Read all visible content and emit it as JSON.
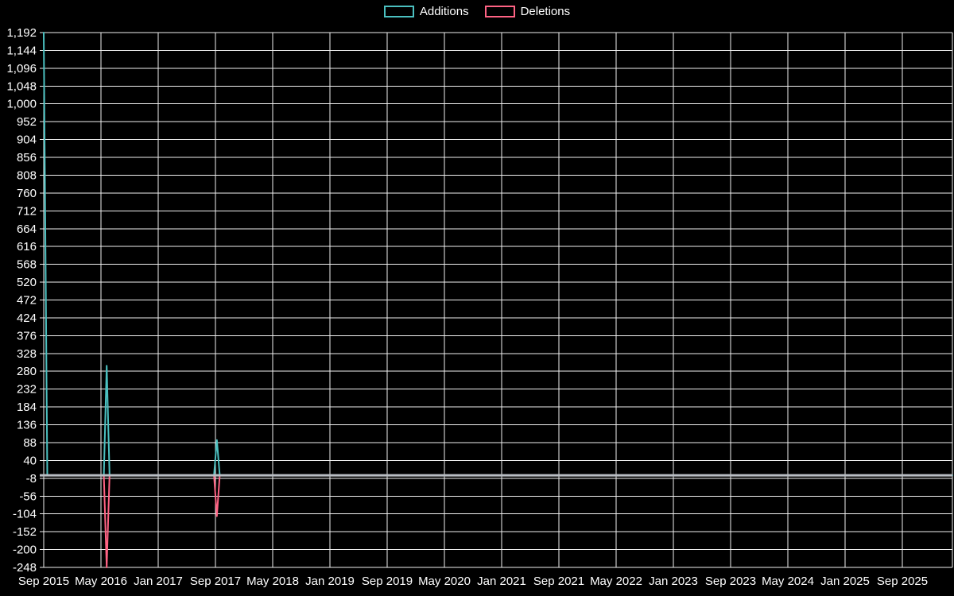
{
  "page": {
    "background": "#000000",
    "text_color": "#ffffff"
  },
  "chart_data": {
    "type": "line",
    "title": "",
    "legend_position": "top",
    "grid": true,
    "grid_color": "#f0f0f0",
    "zero_line_color": "#b9bdc3",
    "background": "#000000",
    "x_unit": "months since Sep 2015",
    "x_domain": [
      0,
      127
    ],
    "y_domain": [
      -248,
      1192
    ],
    "y_tick_step": 48,
    "y_ticks": [
      1192,
      1144,
      1096,
      1048,
      1000,
      952,
      904,
      856,
      808,
      760,
      712,
      664,
      616,
      568,
      520,
      472,
      424,
      376,
      328,
      280,
      232,
      184,
      136,
      88,
      40,
      -8,
      -56,
      -104,
      -152,
      -200,
      -248
    ],
    "x_ticks": [
      {
        "label": "Sep 2015",
        "month": 0
      },
      {
        "label": "May 2016",
        "month": 8
      },
      {
        "label": "Jan 2017",
        "month": 16
      },
      {
        "label": "Sep 2017",
        "month": 24
      },
      {
        "label": "May 2018",
        "month": 32
      },
      {
        "label": "Jan 2019",
        "month": 40
      },
      {
        "label": "Sep 2019",
        "month": 48
      },
      {
        "label": "May 2020",
        "month": 56
      },
      {
        "label": "Jan 2021",
        "month": 64
      },
      {
        "label": "Sep 2021",
        "month": 72
      },
      {
        "label": "May 2022",
        "month": 80
      },
      {
        "label": "Jan 2023",
        "month": 88
      },
      {
        "label": "Sep 2023",
        "month": 96
      },
      {
        "label": "May 2024",
        "month": 104
      },
      {
        "label": "Jan 2025",
        "month": 112
      },
      {
        "label": "Sep 2025",
        "month": 120
      }
    ],
    "series": [
      {
        "name": "Additions",
        "color": "#4bc0c0",
        "points": [
          [
            0,
            1192
          ],
          [
            0.5,
            0
          ],
          [
            8.4,
            0
          ],
          [
            8.8,
            295
          ],
          [
            9.2,
            0
          ],
          [
            23.8,
            0
          ],
          [
            24.2,
            95
          ],
          [
            24.6,
            0
          ],
          [
            127,
            0
          ]
        ]
      },
      {
        "name": "Deletions",
        "color": "#ff6384",
        "points": [
          [
            0,
            0
          ],
          [
            8.4,
            0
          ],
          [
            8.8,
            -248
          ],
          [
            9.2,
            0
          ],
          [
            23.8,
            0
          ],
          [
            24.2,
            -110
          ],
          [
            24.6,
            0
          ],
          [
            127,
            0
          ]
        ]
      }
    ]
  }
}
